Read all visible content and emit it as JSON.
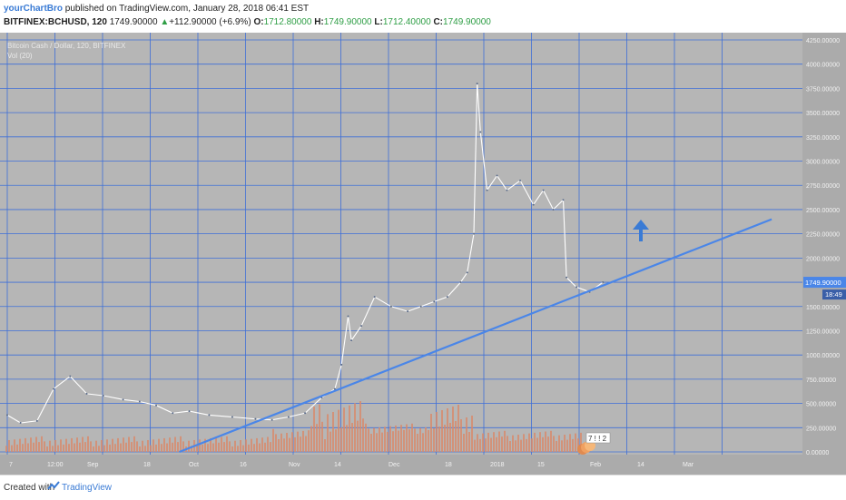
{
  "header": {
    "author": "yourChartBro",
    "published": "published on TradingView.com, January 28, 2018 06:41 EST",
    "symbol": "BITFINEX:BCHUSD, 120",
    "last": "1749.90000",
    "change": "+112.90000 (+6.9%)",
    "o_label": "O:",
    "o": "1712.80000",
    "h_label": "H:",
    "h": "1749.90000",
    "l_label": "L:",
    "l": "1712.40000",
    "c_label": "C:",
    "c": "1749.90000"
  },
  "overlay": {
    "series_name": "Bitcoin Cash / Dollar, 120, BITFINEX",
    "volume_name": "Vol (20)"
  },
  "footer": {
    "created_with": "Created with",
    "brand": "TradingView"
  },
  "colors": {
    "background": "#b6b6b6",
    "grid": "#3e6fd8",
    "trendline": "#4a86e8",
    "candle": "#ffffff",
    "price_tag": "#4a86e8",
    "volume_up": "#7fb27a",
    "volume_down": "#d98a6a"
  },
  "chart_data": {
    "type": "line",
    "title": "Bitcoin Cash / Dollar, 120, BITFINEX",
    "y_ticks": [
      "4250.00000",
      "4000.00000",
      "3750.00000",
      "3500.00000",
      "3250.00000",
      "3000.00000",
      "2750.00000",
      "2500.00000",
      "2250.00000",
      "2000.00000",
      "1750.00000",
      "1500.00000",
      "1250.00000",
      "1000.00000",
      "750.00000",
      "500.00000",
      "250.00000",
      "0.00000"
    ],
    "x_ticks": [
      "7",
      "12:00",
      "Sep",
      "18",
      "Oct",
      "16",
      "Nov",
      "14",
      "Dec",
      "18",
      "2018",
      "15",
      "Feb",
      "14",
      "Mar"
    ],
    "ylim": [
      0,
      4250
    ],
    "last_price": "1749.90000",
    "countdown": "18:49",
    "series": [
      {
        "name": "Bitcoin Cash / Dollar",
        "x": [
          "Aug 1",
          "Aug 5",
          "Aug 10",
          "Aug 15",
          "Aug 20",
          "Aug 25",
          "Aug 30",
          "Sep 5",
          "Sep 10",
          "Sep 15",
          "Sep 20",
          "Sep 25",
          "Oct 1",
          "Oct 8",
          "Oct 15",
          "Oct 20",
          "Oct 25",
          "Oct 30",
          "Nov 4",
          "Nov 8",
          "Nov 10",
          "Nov 12",
          "Nov 13",
          "Nov 16",
          "Nov 20",
          "Nov 25",
          "Nov 30",
          "Dec 4",
          "Dec 8",
          "Dec 12",
          "Dec 16",
          "Dec 18",
          "Dec 20",
          "Dec 21",
          "Dec 22",
          "Dec 24",
          "Dec 27",
          "Dec 30",
          "Jan 3",
          "Jan 7",
          "Jan 10",
          "Jan 13",
          "Jan 16",
          "Jan 17",
          "Jan 20",
          "Jan 24",
          "Jan 28"
        ],
        "values": [
          380,
          300,
          320,
          650,
          780,
          600,
          580,
          540,
          520,
          480,
          400,
          420,
          380,
          360,
          340,
          330,
          360,
          400,
          560,
          650,
          900,
          1400,
          1150,
          1300,
          1600,
          1500,
          1450,
          1500,
          1550,
          1600,
          1750,
          1850,
          2250,
          3800,
          3300,
          2700,
          2850,
          2700,
          2800,
          2550,
          2700,
          2500,
          2600,
          1800,
          1700,
          1650,
          1750
        ]
      },
      {
        "name": "Trendline",
        "x": [
          "Sep 22",
          "Mar 20"
        ],
        "values": [
          0,
          2400
        ]
      }
    ]
  }
}
